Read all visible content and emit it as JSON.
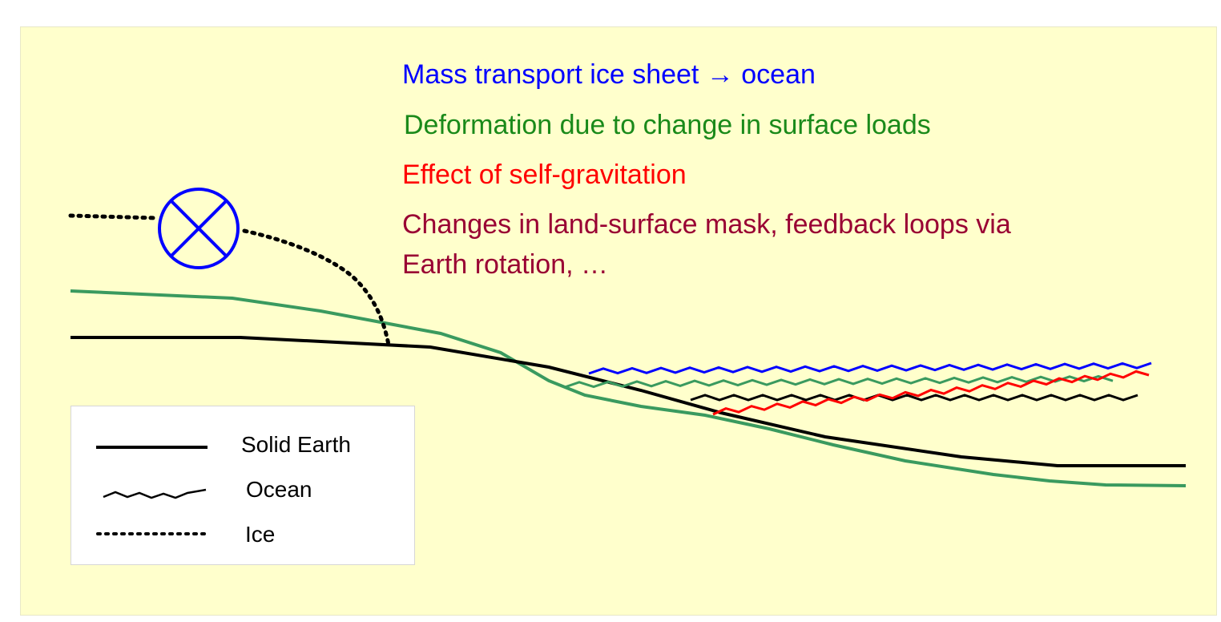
{
  "annotations": {
    "line1": "Mass transport ice sheet → ocean",
    "line2": "Deformation due to change in surface loads",
    "line3": "Effect of self-gravitation",
    "line4a": "Changes in land-surface mask, feedback loops via",
    "line4b": "Earth rotation, …"
  },
  "legend": {
    "solid_earth": "Solid Earth",
    "ocean": "Ocean",
    "ice": "Ice"
  },
  "colors": {
    "background": "#ffffcc",
    "mass_transport": "#0000ff",
    "deformation": "#1a8a1a",
    "deformed_surface": "#3a9a5f",
    "self_gravitation": "#ff0000",
    "feedback": "#990033",
    "solid_earth": "#000000"
  },
  "icons": {
    "ice_sheet_marker": "circle-x-icon"
  }
}
